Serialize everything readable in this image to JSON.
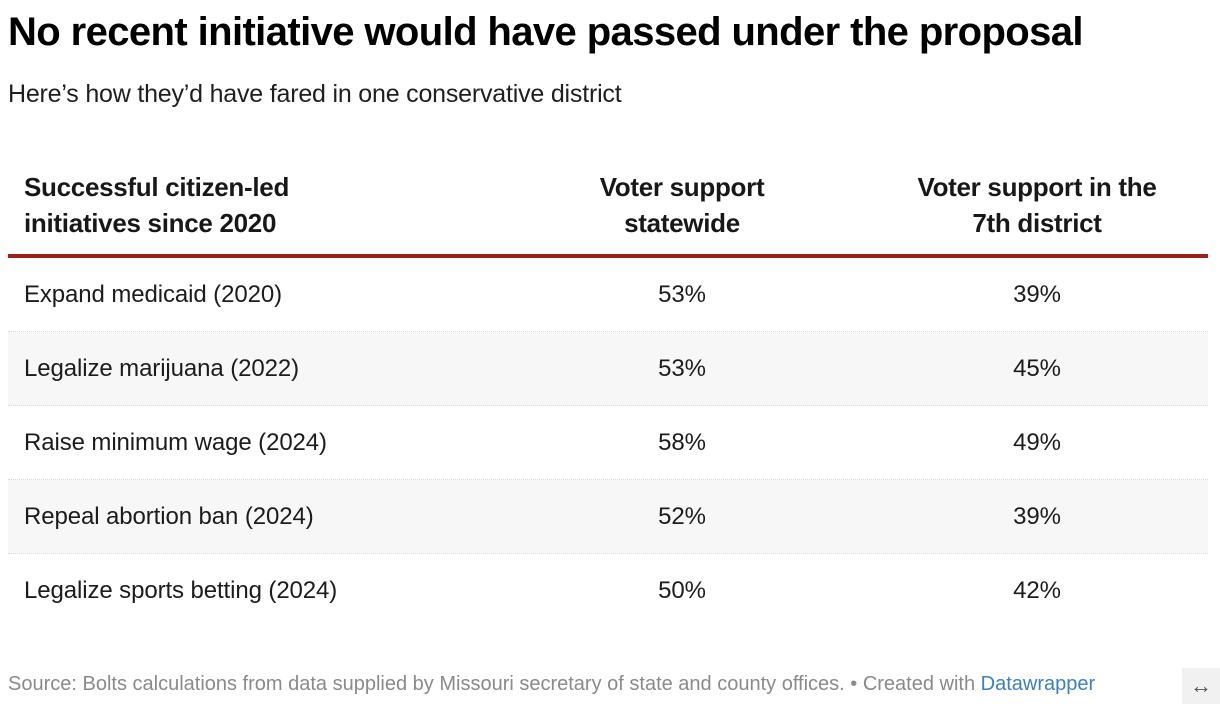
{
  "header": {
    "title": "No recent initiative would have passed under the proposal",
    "subtitle": "Here’s how they’d have fared in one conservative district"
  },
  "colors": {
    "header_rule": "#9e1f17",
    "alt_row": "#f7f7f7",
    "link": "#3d7fbf",
    "footer_text": "#8a8a8a"
  },
  "chart_data": {
    "type": "table",
    "title": "No recent initiative would have passed under the proposal",
    "subtitle": "Here’s how they’d have fared in one conservative district",
    "columns": [
      "Successful citizen-led initiatives since 2020",
      "Voter support statewide",
      "Voter support in the 7th district"
    ],
    "rows": [
      {
        "initiative": "Expand medicaid (2020)",
        "statewide": "53%",
        "district7": "39%"
      },
      {
        "initiative": "Legalize marijuana (2022)",
        "statewide": "53%",
        "district7": "45%"
      },
      {
        "initiative": "Raise minimum wage (2024)",
        "statewide": "58%",
        "district7": "49%"
      },
      {
        "initiative": "Repeal abortion ban (2024)",
        "statewide": "52%",
        "district7": "39%"
      },
      {
        "initiative": "Legalize sports betting (2024)",
        "statewide": "50%",
        "district7": "42%"
      }
    ],
    "values_statewide": [
      53,
      53,
      58,
      52,
      50
    ],
    "values_district7": [
      39,
      45,
      49,
      39,
      42
    ],
    "units": "%"
  },
  "footer": {
    "source": "Source: Bolts calculations from data supplied by Missouri secretary of state and county offices. • Created with ",
    "link_label": "Datawrapper",
    "resize_icon": "↔"
  }
}
